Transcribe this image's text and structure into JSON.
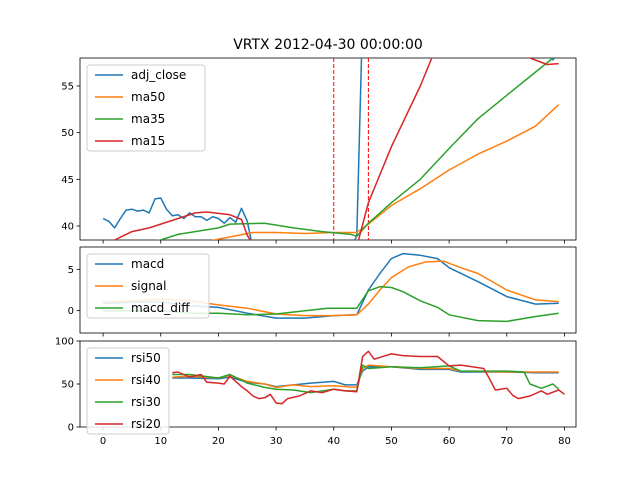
{
  "title": "VRTX 2012-04-30 00:00:00",
  "colors": {
    "blue": "#1f77b4",
    "orange": "#ff7f0e",
    "green": "#2ca02c",
    "red": "#d62728"
  },
  "chart_data": [
    {
      "type": "line",
      "title": "VRTX 2012-04-30 00:00:00",
      "xlim": [
        -4,
        82
      ],
      "ylim": [
        38.5,
        58
      ],
      "x_ticks": [
        0,
        10,
        20,
        30,
        40,
        50,
        60,
        70,
        80
      ],
      "y_ticks": [
        40,
        45,
        50,
        55
      ],
      "legend_position": "upper-left",
      "vlines": [
        40,
        46
      ],
      "series": [
        {
          "name": "adj_close",
          "color": "#1f77b4",
          "points": [
            [
              0,
              40.8
            ],
            [
              1,
              40.5
            ],
            [
              2,
              39.8
            ],
            [
              3,
              40.8
            ],
            [
              4,
              41.7
            ],
            [
              5,
              41.8
            ],
            [
              6,
              41.6
            ],
            [
              7,
              41.7
            ],
            [
              8,
              41.4
            ],
            [
              9,
              42.9
            ],
            [
              10,
              43.0
            ],
            [
              11,
              41.8
            ],
            [
              12,
              41.1
            ],
            [
              13,
              41.2
            ],
            [
              14,
              40.8
            ],
            [
              15,
              41.4
            ],
            [
              16,
              41.0
            ],
            [
              17,
              41.0
            ],
            [
              18,
              40.6
            ],
            [
              19,
              41.0
            ],
            [
              20,
              40.8
            ],
            [
              21,
              40.3
            ],
            [
              22,
              40.9
            ],
            [
              23,
              40.4
            ],
            [
              24,
              41.9
            ],
            [
              25,
              40.5
            ],
            [
              26,
              37.5
            ],
            [
              43,
              37.5
            ],
            [
              44,
              39.0
            ],
            [
              45,
              62.5
            ],
            [
              77,
              62.5
            ],
            [
              78,
              57.8
            ],
            [
              79,
              58.5
            ]
          ]
        },
        {
          "name": "ma50",
          "color": "#ff7f0e",
          "points": [
            [
              0,
              37.5
            ],
            [
              14,
              37.7
            ],
            [
              20,
              38.6
            ],
            [
              26,
              39.3
            ],
            [
              30,
              39.3
            ],
            [
              35,
              39.2
            ],
            [
              40,
              39.3
            ],
            [
              44,
              39.3
            ],
            [
              46,
              40.2
            ],
            [
              50,
              42.2
            ],
            [
              55,
              44.0
            ],
            [
              60,
              46.0
            ],
            [
              65,
              47.7
            ],
            [
              70,
              49.1
            ],
            [
              75,
              50.7
            ],
            [
              79,
              53.0
            ]
          ]
        },
        {
          "name": "ma35",
          "color": "#2ca02c",
          "points": [
            [
              0,
              37.5
            ],
            [
              10,
              38.5
            ],
            [
              13,
              39.1
            ],
            [
              20,
              39.8
            ],
            [
              22,
              40.2
            ],
            [
              28,
              40.3
            ],
            [
              33,
              39.8
            ],
            [
              38,
              39.4
            ],
            [
              43,
              39.1
            ],
            [
              44,
              38.9
            ],
            [
              46,
              40.3
            ],
            [
              50,
              42.5
            ],
            [
              55,
              45.0
            ],
            [
              60,
              48.3
            ],
            [
              65,
              51.5
            ],
            [
              70,
              54.0
            ],
            [
              75,
              56.5
            ],
            [
              78,
              58.0
            ]
          ]
        },
        {
          "name": "ma15",
          "color": "#d62728",
          "points": [
            [
              0,
              37.8
            ],
            [
              2,
              38.5
            ],
            [
              5,
              39.4
            ],
            [
              8,
              39.8
            ],
            [
              12,
              40.6
            ],
            [
              16,
              41.4
            ],
            [
              18,
              41.5
            ],
            [
              22,
              41.2
            ],
            [
              24,
              40.7
            ],
            [
              25,
              39.0
            ],
            [
              26,
              38.0
            ],
            [
              43,
              38.0
            ],
            [
              44,
              37.8
            ],
            [
              46,
              42.5
            ],
            [
              50,
              48.5
            ],
            [
              55,
              55.0
            ],
            [
              57,
              58.0
            ],
            [
              60,
              58.5
            ],
            [
              72,
              58.5
            ],
            [
              74,
              58.0
            ],
            [
              77,
              57.3
            ],
            [
              79,
              57.4
            ]
          ]
        }
      ]
    },
    {
      "type": "line",
      "xlim": [
        -4,
        82
      ],
      "ylim": [
        -2.7,
        7.7
      ],
      "x_ticks": [
        0,
        10,
        20,
        30,
        40,
        50,
        60,
        70,
        80
      ],
      "y_ticks": [
        0,
        5
      ],
      "legend_position": "upper-left",
      "series": [
        {
          "name": "macd",
          "color": "#1f77b4",
          "points": [
            [
              0,
              0.9
            ],
            [
              5,
              1.0
            ],
            [
              10,
              1.1
            ],
            [
              15,
              0.6
            ],
            [
              20,
              0.4
            ],
            [
              25,
              -0.3
            ],
            [
              30,
              -0.9
            ],
            [
              35,
              -0.9
            ],
            [
              40,
              -0.6
            ],
            [
              44,
              -0.5
            ],
            [
              46,
              2.5
            ],
            [
              48,
              4.5
            ],
            [
              50,
              6.3
            ],
            [
              52,
              6.9
            ],
            [
              55,
              6.7
            ],
            [
              58,
              6.3
            ],
            [
              60,
              5.2
            ],
            [
              65,
              3.5
            ],
            [
              70,
              1.7
            ],
            [
              75,
              0.8
            ],
            [
              79,
              0.9
            ]
          ]
        },
        {
          "name": "signal",
          "color": "#ff7f0e",
          "points": [
            [
              0,
              1.0
            ],
            [
              5,
              1.2
            ],
            [
              10,
              1.4
            ],
            [
              15,
              1.2
            ],
            [
              20,
              0.7
            ],
            [
              25,
              0.3
            ],
            [
              30,
              -0.4
            ],
            [
              35,
              -0.6
            ],
            [
              40,
              -0.6
            ],
            [
              44,
              -0.5
            ],
            [
              46,
              0.8
            ],
            [
              48,
              2.5
            ],
            [
              50,
              4.0
            ],
            [
              53,
              5.3
            ],
            [
              56,
              5.9
            ],
            [
              59,
              6.0
            ],
            [
              62,
              5.2
            ],
            [
              65,
              4.5
            ],
            [
              70,
              2.5
            ],
            [
              75,
              1.3
            ],
            [
              79,
              1.1
            ]
          ]
        },
        {
          "name": "macd_diff",
          "color": "#2ca02c",
          "points": [
            [
              0,
              0.0
            ],
            [
              10,
              0.0
            ],
            [
              15,
              -0.3
            ],
            [
              20,
              -0.3
            ],
            [
              25,
              -0.5
            ],
            [
              30,
              -0.4
            ],
            [
              35,
              0.0
            ],
            [
              39,
              0.3
            ],
            [
              44,
              0.3
            ],
            [
              46,
              2.4
            ],
            [
              48,
              2.9
            ],
            [
              50,
              2.8
            ],
            [
              52,
              2.3
            ],
            [
              55,
              1.2
            ],
            [
              58,
              0.4
            ],
            [
              60,
              -0.5
            ],
            [
              65,
              -1.2
            ],
            [
              70,
              -1.3
            ],
            [
              75,
              -0.7
            ],
            [
              79,
              -0.3
            ]
          ]
        }
      ]
    },
    {
      "type": "line",
      "xlim": [
        -4,
        82
      ],
      "ylim": [
        0,
        100
      ],
      "x_ticks": [
        0,
        10,
        20,
        30,
        40,
        50,
        60,
        70,
        80
      ],
      "x_tick_labels": [
        "0",
        "10",
        "20",
        "30",
        "40",
        "50",
        "60",
        "70",
        "80"
      ],
      "y_ticks": [
        0,
        50,
        100
      ],
      "legend_position": "upper-left",
      "series": [
        {
          "name": "rsi50",
          "color": "#1f77b4",
          "points": [
            [
              12,
              57
            ],
            [
              15,
              57
            ],
            [
              20,
              56
            ],
            [
              22,
              58
            ],
            [
              25,
              52
            ],
            [
              28,
              50
            ],
            [
              30,
              47
            ],
            [
              33,
              49
            ],
            [
              36,
              51
            ],
            [
              40,
              53
            ],
            [
              42,
              49
            ],
            [
              44,
              49
            ],
            [
              45,
              65
            ],
            [
              46,
              70
            ],
            [
              50,
              70
            ],
            [
              55,
              67
            ],
            [
              60,
              67
            ],
            [
              62,
              64
            ],
            [
              70,
              64
            ],
            [
              75,
              63
            ],
            [
              79,
              63
            ]
          ]
        },
        {
          "name": "rsi40",
          "color": "#ff7f0e",
          "points": [
            [
              12,
              58
            ],
            [
              15,
              59
            ],
            [
              20,
              57
            ],
            [
              22,
              60
            ],
            [
              25,
              53
            ],
            [
              28,
              50
            ],
            [
              30,
              46
            ],
            [
              33,
              49
            ],
            [
              36,
              47
            ],
            [
              40,
              48
            ],
            [
              42,
              47
            ],
            [
              44,
              46
            ],
            [
              45,
              68
            ],
            [
              46,
              72
            ],
            [
              50,
              70
            ],
            [
              55,
              68
            ],
            [
              60,
              68
            ],
            [
              62,
              65
            ],
            [
              70,
              64
            ],
            [
              75,
              64
            ],
            [
              79,
              64
            ]
          ]
        },
        {
          "name": "rsi30",
          "color": "#2ca02c",
          "points": [
            [
              12,
              61
            ],
            [
              15,
              61
            ],
            [
              20,
              57
            ],
            [
              22,
              61
            ],
            [
              25,
              51
            ],
            [
              28,
              46
            ],
            [
              30,
              44
            ],
            [
              33,
              43
            ],
            [
              36,
              40
            ],
            [
              40,
              44
            ],
            [
              42,
              42
            ],
            [
              44,
              42
            ],
            [
              45,
              72
            ],
            [
              46,
              68
            ],
            [
              50,
              70
            ],
            [
              55,
              69
            ],
            [
              60,
              71
            ],
            [
              62,
              65
            ],
            [
              70,
              65
            ],
            [
              73,
              64
            ],
            [
              74,
              50
            ],
            [
              76,
              45
            ],
            [
              78,
              50
            ],
            [
              79,
              44
            ]
          ]
        },
        {
          "name": "rsi20",
          "color": "#d62728",
          "points": [
            [
              12,
              63
            ],
            [
              13,
              64
            ],
            [
              15,
              58
            ],
            [
              17,
              61
            ],
            [
              18,
              52
            ],
            [
              20,
              51
            ],
            [
              21,
              50
            ],
            [
              22,
              59
            ],
            [
              24,
              47
            ],
            [
              25,
              42
            ],
            [
              26,
              36
            ],
            [
              27,
              33
            ],
            [
              28,
              34
            ],
            [
              29,
              38
            ],
            [
              30,
              28
            ],
            [
              31,
              27
            ],
            [
              32,
              33
            ],
            [
              34,
              36
            ],
            [
              36,
              42
            ],
            [
              38,
              40
            ],
            [
              40,
              44
            ],
            [
              42,
              42
            ],
            [
              44,
              41
            ],
            [
              45,
              82
            ],
            [
              46,
              88
            ],
            [
              47,
              79
            ],
            [
              50,
              85
            ],
            [
              52,
              83
            ],
            [
              55,
              82
            ],
            [
              58,
              82
            ],
            [
              60,
              71
            ],
            [
              62,
              72
            ],
            [
              64,
              70
            ],
            [
              66,
              68
            ],
            [
              67,
              56
            ],
            [
              68,
              43
            ],
            [
              70,
              45
            ],
            [
              71,
              37
            ],
            [
              72,
              33
            ],
            [
              74,
              36
            ],
            [
              76,
              42
            ],
            [
              77,
              38
            ],
            [
              79,
              43
            ],
            [
              80,
              38
            ]
          ]
        }
      ]
    }
  ]
}
